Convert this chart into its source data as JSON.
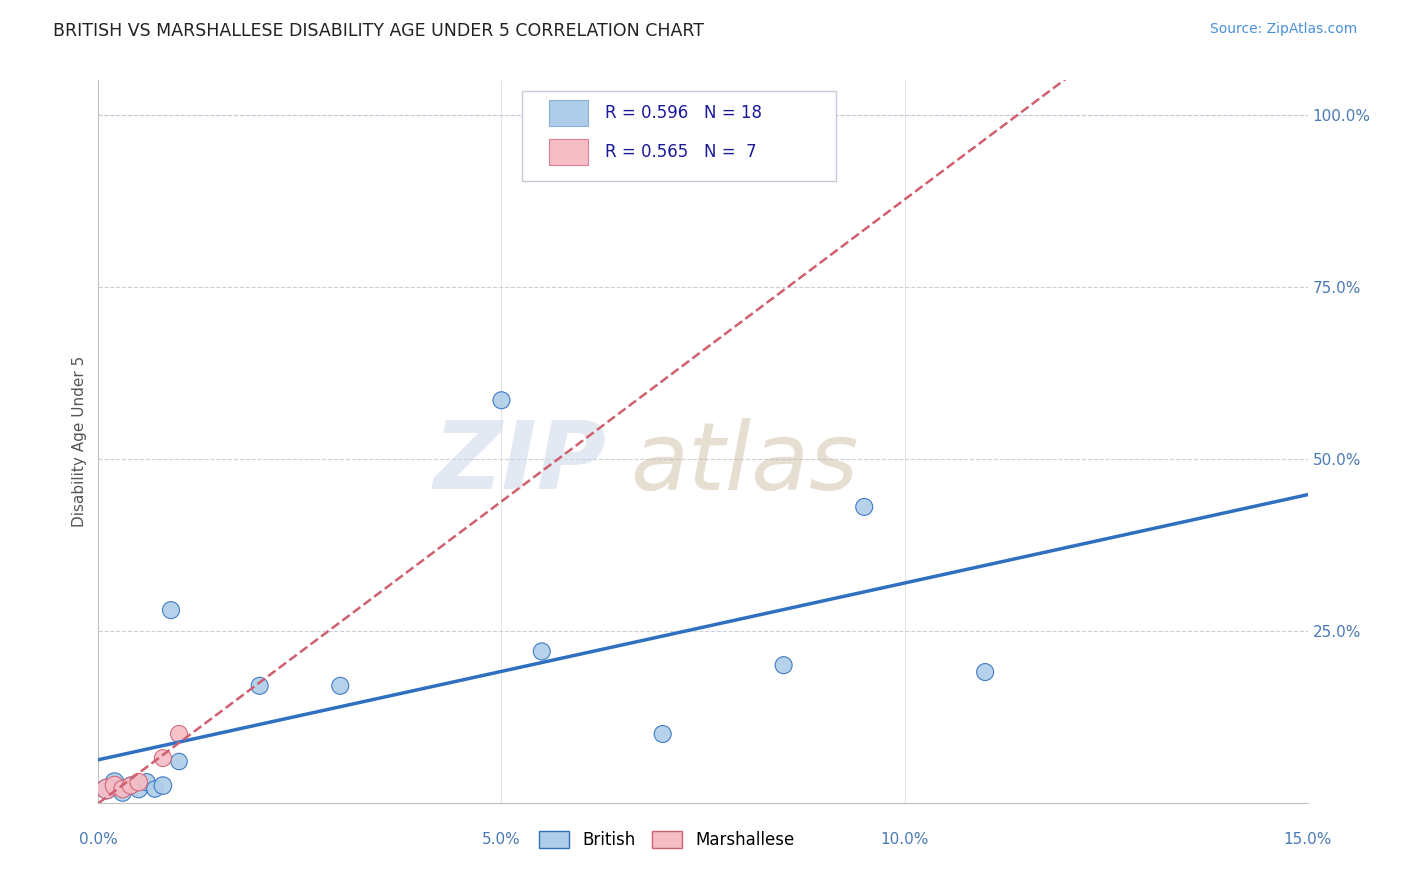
{
  "title": "BRITISH VS MARSHALLESE DISABILITY AGE UNDER 5 CORRELATION CHART",
  "source": "Source: ZipAtlas.com",
  "ylabel": "Disability Age Under 5",
  "xlim": [
    0.0,
    0.15
  ],
  "ylim": [
    0.0,
    1.05
  ],
  "xticks": [
    0.0,
    0.05,
    0.1,
    0.15
  ],
  "xticklabels": [
    "0.0%",
    "",
    "",
    ""
  ],
  "ytick_values": [
    0.25,
    0.5,
    0.75,
    1.0
  ],
  "ytick_labels": [
    "25.0%",
    "50.0%",
    "75.0%",
    "100.0%"
  ],
  "xtick_bottom_labels": [
    "0.0%",
    "5.0%",
    "10.0%",
    "15.0%"
  ],
  "british_R": 0.596,
  "british_N": 18,
  "marshallese_R": 0.565,
  "marshallese_N": 7,
  "british_color": "#aecde8",
  "marshallese_color": "#f5bdc6",
  "british_line_color": "#3070c0",
  "marshallese_line_color": "#d06070",
  "british_x": [
    0.001,
    0.002,
    0.003,
    0.004,
    0.005,
    0.006,
    0.007,
    0.008,
    0.009,
    0.01,
    0.02,
    0.03,
    0.05,
    0.055,
    0.07,
    0.085,
    0.095,
    0.11
  ],
  "british_y": [
    0.02,
    0.03,
    0.015,
    0.025,
    0.02,
    0.03,
    0.02,
    0.025,
    0.28,
    0.06,
    0.17,
    0.17,
    0.585,
    0.22,
    0.1,
    0.2,
    0.43,
    0.19
  ],
  "british_sizes": [
    200,
    180,
    160,
    150,
    160,
    150,
    140,
    160,
    150,
    140,
    150,
    150,
    150,
    150,
    150,
    150,
    150,
    150
  ],
  "marshallese_x": [
    0.001,
    0.002,
    0.003,
    0.004,
    0.005,
    0.008,
    0.01
  ],
  "marshallese_y": [
    0.02,
    0.025,
    0.02,
    0.025,
    0.03,
    0.065,
    0.1
  ],
  "marshallese_sizes": [
    200,
    180,
    160,
    150,
    160,
    150,
    150
  ],
  "grid_color": "#c8c8d8",
  "background_color": "#ffffff",
  "title_color": "#222222",
  "source_color": "#4a90d9",
  "axis_label_color": "#4a7ab5",
  "ylabel_color": "#555555"
}
